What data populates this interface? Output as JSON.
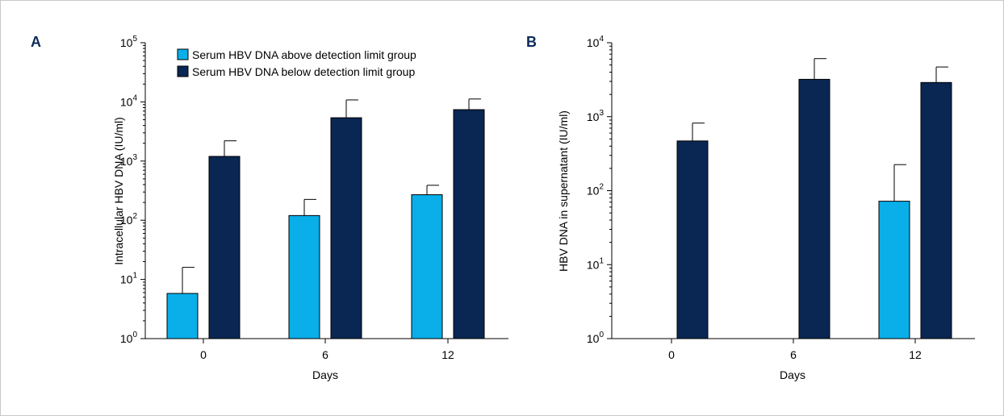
{
  "colors": {
    "above": "#0aaee8",
    "below": "#0a2652",
    "frame": "#c8c8c8"
  },
  "legend": {
    "above_label": "Serum HBV DNA above detection limit group",
    "below_label": "Serum HBV DNA below detection limit group"
  },
  "chart_data": [
    {
      "type": "bar",
      "panel": "A",
      "categories": [
        "0",
        "6",
        "12"
      ],
      "xlabel": "Days",
      "ylabel": "Intracellular HBV DNA (IU/ml)",
      "yscale": "log",
      "ylim": [
        1,
        100000
      ],
      "ytick_exponents": [
        "0",
        "1",
        "2",
        "3",
        "4",
        "5"
      ],
      "series": [
        {
          "name": "Serum HBV DNA above detection limit group",
          "values": [
            5.8,
            120,
            270
          ],
          "errors_upper": [
            16,
            225,
            390
          ]
        },
        {
          "name": "Serum HBV DNA below detection limit group",
          "values": [
            1200,
            5400,
            7400
          ],
          "errors_upper": [
            2200,
            10800,
            11200
          ]
        }
      ]
    },
    {
      "type": "bar",
      "panel": "B",
      "categories": [
        "0",
        "6",
        "12"
      ],
      "xlabel": "Days",
      "ylabel": "HBV DNA in supernatant (IU/ml)",
      "yscale": "log",
      "ylim": [
        1,
        10000
      ],
      "ytick_exponents": [
        "0",
        "1",
        "2",
        "3",
        "4"
      ],
      "series": [
        {
          "name": "Serum HBV DNA above detection limit group",
          "values": [
            null,
            null,
            72
          ],
          "errors_upper": [
            null,
            null,
            225
          ]
        },
        {
          "name": "Serum HBV DNA below detection limit group",
          "values": [
            470,
            3200,
            2900
          ],
          "errors_upper": [
            820,
            6100,
            4700
          ]
        }
      ]
    }
  ]
}
